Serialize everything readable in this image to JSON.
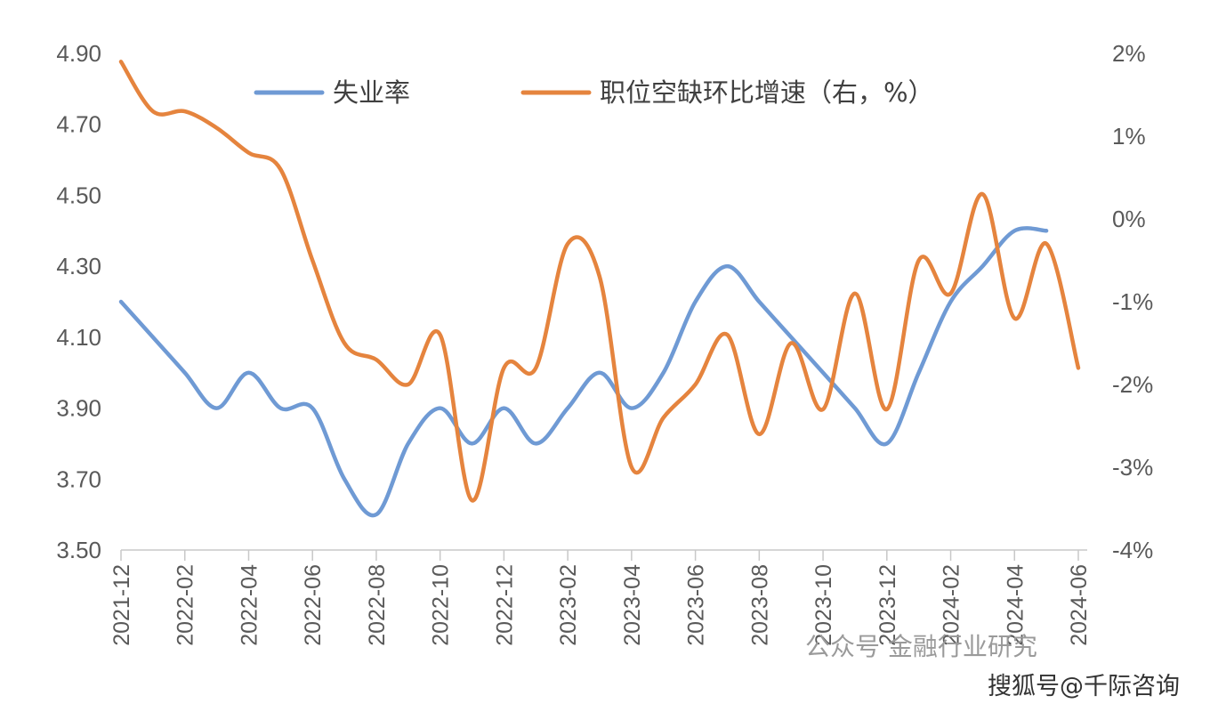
{
  "chart_data": {
    "type": "line",
    "x": [
      "2021-12",
      "2022-01",
      "2022-02",
      "2022-03",
      "2022-04",
      "2022-05",
      "2022-06",
      "2022-07",
      "2022-08",
      "2022-09",
      "2022-10",
      "2022-11",
      "2022-12",
      "2023-01",
      "2023-02",
      "2023-03",
      "2023-04",
      "2023-05",
      "2023-06",
      "2023-07",
      "2023-08",
      "2023-09",
      "2023-10",
      "2023-11",
      "2023-12",
      "2024-01",
      "2024-02",
      "2024-03",
      "2024-04",
      "2024-05",
      "2024-06"
    ],
    "x_tick_labels": [
      "2021-12",
      "2022-02",
      "2022-04",
      "2022-06",
      "2022-08",
      "2022-10",
      "2022-12",
      "2023-02",
      "2023-04",
      "2023-06",
      "2023-08",
      "2023-10",
      "2023-12",
      "2024-02",
      "2024-04",
      "2024-06"
    ],
    "left_axis": {
      "ticks": [
        "4.90",
        "4.70",
        "4.50",
        "4.30",
        "4.10",
        "3.90",
        "3.70",
        "3.50"
      ],
      "ylim": [
        3.5,
        4.9
      ]
    },
    "right_axis": {
      "ticks": [
        "2%",
        "1%",
        "0%",
        "-1%",
        "-2%",
        "-3%",
        "-4%"
      ],
      "ylim": [
        -4,
        2
      ]
    },
    "legend_position": "top",
    "series": [
      {
        "name": "失业率",
        "axis": "left",
        "color": "#6f9ad4",
        "values": [
          4.2,
          4.1,
          4.0,
          3.9,
          4.0,
          3.9,
          3.9,
          3.7,
          3.6,
          3.8,
          3.9,
          3.8,
          3.9,
          3.8,
          3.9,
          4.0,
          3.9,
          4.0,
          4.2,
          4.3,
          4.2,
          4.1,
          4.0,
          3.9,
          3.8,
          4.0,
          4.2,
          4.3,
          4.4,
          4.4,
          null
        ]
      },
      {
        "name": "职位空缺环比增速（右，%）",
        "axis": "right",
        "color": "#e5843e",
        "values": [
          1.9,
          1.3,
          1.3,
          1.1,
          0.8,
          0.6,
          -0.5,
          -1.5,
          -1.7,
          -2.0,
          -1.4,
          -3.4,
          -1.8,
          -1.8,
          -0.3,
          -0.7,
          -3.0,
          -2.4,
          -2.0,
          -1.4,
          -2.6,
          -1.5,
          -2.3,
          -0.9,
          -2.3,
          -0.5,
          -0.9,
          0.3,
          -1.2,
          -0.3,
          -1.8
        ]
      }
    ]
  },
  "watermark": "公众号 金融行业研究",
  "credit": "搜狐号@千际咨询"
}
